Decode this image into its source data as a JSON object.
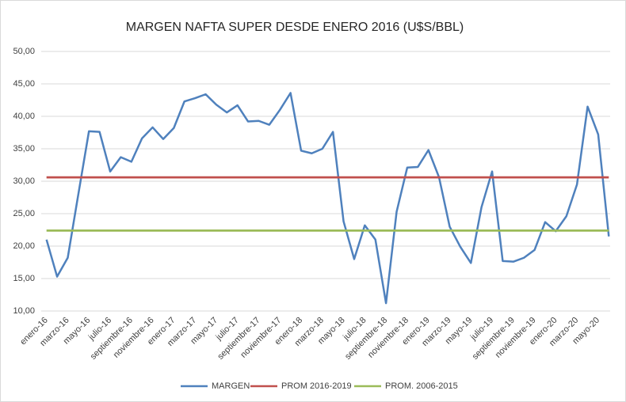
{
  "chart_data": {
    "type": "line",
    "title": "MARGEN NAFTA SUPER DESDE ENERO 2016 (U$S/BBL)",
    "categories": [
      "enero-16",
      null,
      "marzo-16",
      null,
      "mayo-16",
      null,
      "julio-16",
      null,
      "septiembre-16",
      null,
      "noviembre-16",
      null,
      "enero-17",
      null,
      "marzo-17",
      null,
      "mayo-17",
      null,
      "julio-17",
      null,
      "septiembre-17",
      null,
      "noviembre-17",
      null,
      "enero-18",
      null,
      "marzo-18",
      null,
      "mayo-18",
      null,
      "julio-18",
      null,
      "septiembre-18",
      null,
      "noviembre-18",
      null,
      "enero-19",
      null,
      "marzo-19",
      null,
      "mayo-19",
      null,
      "julio-19",
      null,
      "septiembre-19",
      null,
      "noviembre-19",
      null,
      "enero-20",
      null,
      "marzo-20",
      null,
      "mayo-20",
      null
    ],
    "series": [
      {
        "name": "MARGEN",
        "color": "#4f81bd",
        "values": [
          21.0,
          15.3,
          18.2,
          28.0,
          37.7,
          37.6,
          31.5,
          33.7,
          33.0,
          36.6,
          38.3,
          36.5,
          38.2,
          42.3,
          42.8,
          43.4,
          41.8,
          40.6,
          41.7,
          39.2,
          39.3,
          38.7,
          41.0,
          43.6,
          34.7,
          34.3,
          35.0,
          37.6,
          23.8,
          18.0,
          23.2,
          21.0,
          11.2,
          25.3,
          32.1,
          32.2,
          34.8,
          30.6,
          23.0,
          19.9,
          17.4,
          26.0,
          31.5,
          17.7,
          17.6,
          18.2,
          19.4,
          23.7,
          22.3,
          24.6,
          29.5,
          41.5,
          37.2,
          21.5
        ]
      },
      {
        "name": "PROM 2016-2019",
        "color": "#c0504d",
        "values": [
          30.6,
          30.6,
          30.6,
          30.6,
          30.6,
          30.6,
          30.6,
          30.6,
          30.6,
          30.6,
          30.6,
          30.6,
          30.6,
          30.6,
          30.6,
          30.6,
          30.6,
          30.6,
          30.6,
          30.6,
          30.6,
          30.6,
          30.6,
          30.6,
          30.6,
          30.6,
          30.6,
          30.6,
          30.6,
          30.6,
          30.6,
          30.6,
          30.6,
          30.6,
          30.6,
          30.6,
          30.6,
          30.6,
          30.6,
          30.6,
          30.6,
          30.6,
          30.6,
          30.6,
          30.6,
          30.6,
          30.6,
          30.6,
          30.6,
          30.6,
          30.6,
          30.6,
          30.6,
          30.6
        ]
      },
      {
        "name": "PROM. 2006-2015",
        "color": "#9bbb59",
        "values": [
          22.4,
          22.4,
          22.4,
          22.4,
          22.4,
          22.4,
          22.4,
          22.4,
          22.4,
          22.4,
          22.4,
          22.4,
          22.4,
          22.4,
          22.4,
          22.4,
          22.4,
          22.4,
          22.4,
          22.4,
          22.4,
          22.4,
          22.4,
          22.4,
          22.4,
          22.4,
          22.4,
          22.4,
          22.4,
          22.4,
          22.4,
          22.4,
          22.4,
          22.4,
          22.4,
          22.4,
          22.4,
          22.4,
          22.4,
          22.4,
          22.4,
          22.4,
          22.4,
          22.4,
          22.4,
          22.4,
          22.4,
          22.4,
          22.4,
          22.4,
          22.4,
          22.4,
          22.4,
          22.4
        ]
      }
    ],
    "ylim": [
      10,
      50
    ],
    "yticks": [
      {
        "value": 10,
        "label": "10,00"
      },
      {
        "value": 15,
        "label": "15,00"
      },
      {
        "value": 20,
        "label": "20,00"
      },
      {
        "value": 25,
        "label": "25,00"
      },
      {
        "value": 30,
        "label": "30,00"
      },
      {
        "value": 35,
        "label": "35,00"
      },
      {
        "value": 40,
        "label": "40,00"
      },
      {
        "value": 45,
        "label": "45,00"
      },
      {
        "value": 50,
        "label": "50,00"
      }
    ],
    "grid": true,
    "legend": "bottom"
  }
}
